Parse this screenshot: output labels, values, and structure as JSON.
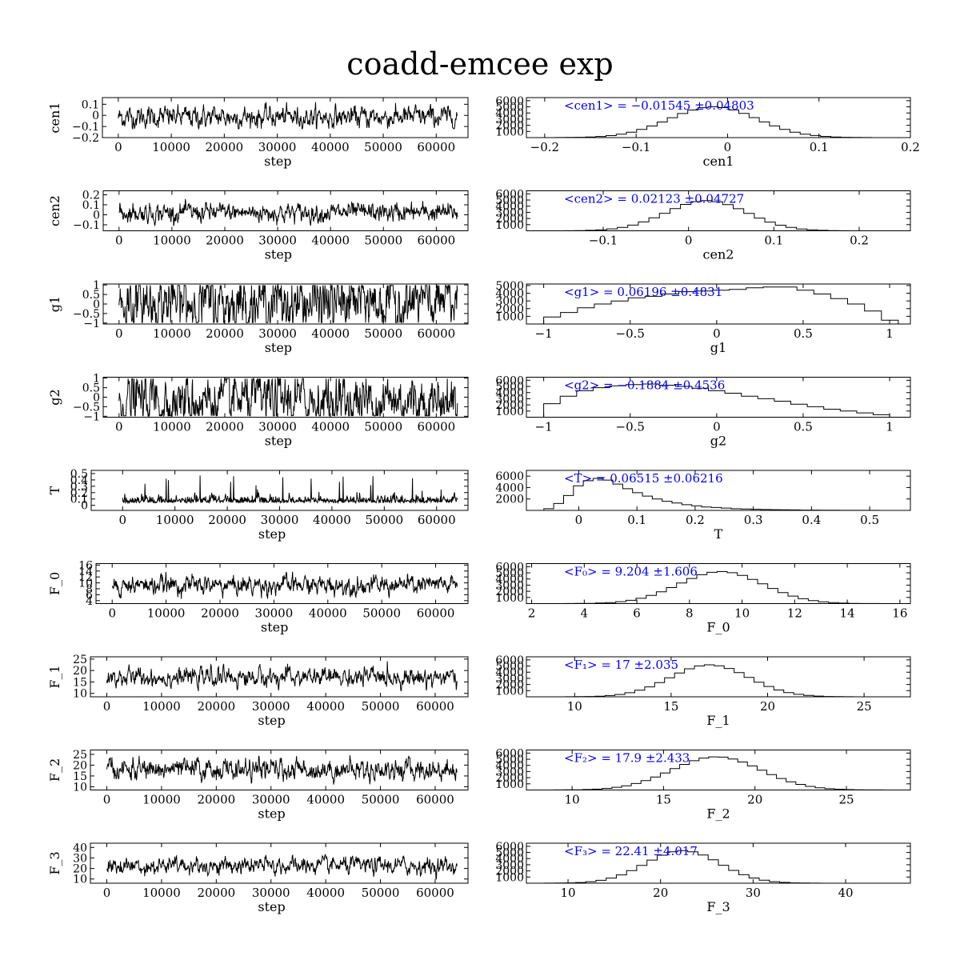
{
  "title": "coadd-emcee exp",
  "colors": {
    "trace": "#000000",
    "annotation": "#0000ff",
    "axes": "#000000"
  },
  "chart_data": [
    {
      "type": "line",
      "panel": "trace",
      "xlabel": "step",
      "ylabel": "cen1",
      "xlim": [
        -3000,
        66000
      ],
      "ylim": [
        -0.2,
        0.16
      ],
      "xticks": [
        0,
        10000,
        20000,
        30000,
        40000,
        50000,
        60000
      ],
      "yticks": [
        0.1,
        0,
        -0.1,
        -0.2
      ],
      "yticklabels": [
        "0.1",
        "0",
        "−0.1",
        "−0.2"
      ],
      "series": [
        {
          "n_steps": 64000,
          "mean": -0.01545,
          "std": 0.04803,
          "min": -0.12,
          "max": 0.12
        }
      ]
    },
    {
      "type": "bar",
      "panel": "hist",
      "xlabel": "cen1",
      "xlim": [
        -0.22,
        0.2
      ],
      "ylim": [
        0,
        6500
      ],
      "xticks": [
        -0.2,
        -0.1,
        0,
        0.1,
        0.2
      ],
      "xticklabels": [
        "−0.2",
        "−0.1",
        "0",
        "0.1",
        "0.2"
      ],
      "yticks": [
        1000,
        2000,
        3000,
        4000,
        5000,
        6000
      ],
      "annotation": "<cen1> = −0.01545 ±0.04803",
      "hist": {
        "mean": -0.01545,
        "std": 0.04803,
        "peak": 5000,
        "range": [
          -0.2,
          0.18
        ]
      }
    },
    {
      "type": "line",
      "panel": "trace",
      "xlabel": "step",
      "ylabel": "cen2",
      "xlim": [
        -3000,
        66000
      ],
      "ylim": [
        -0.16,
        0.24
      ],
      "xticks": [
        0,
        10000,
        20000,
        30000,
        40000,
        50000,
        60000
      ],
      "yticks": [
        0.2,
        0.1,
        0,
        -0.1
      ],
      "yticklabels": [
        "0.2",
        "0.1",
        "0",
        "−0.1"
      ],
      "series": [
        {
          "n_steps": 64000,
          "mean": 0.02123,
          "std": 0.04727,
          "min": -0.11,
          "max": 0.21
        }
      ]
    },
    {
      "type": "bar",
      "panel": "hist",
      "xlabel": "cen2",
      "xlim": [
        -0.19,
        0.26
      ],
      "ylim": [
        0,
        6500
      ],
      "xticks": [
        -0.1,
        0,
        0.1,
        0.2
      ],
      "xticklabels": [
        "−0.1",
        "0",
        "0.1",
        "0.2"
      ],
      "yticks": [
        1000,
        2000,
        3000,
        4000,
        5000,
        6000
      ],
      "annotation": "<cen2> = 0.02123 ±0.04727",
      "hist": {
        "mean": 0.02123,
        "std": 0.04727,
        "peak": 4900,
        "range": [
          -0.17,
          0.25
        ]
      }
    },
    {
      "type": "line",
      "panel": "trace",
      "xlabel": "step",
      "ylabel": "g1",
      "xlim": [
        -3000,
        66000
      ],
      "ylim": [
        -1.05,
        1.05
      ],
      "xticks": [
        0,
        10000,
        20000,
        30000,
        40000,
        50000,
        60000
      ],
      "yticks": [
        1,
        0.5,
        0,
        -0.5,
        -1
      ],
      "yticklabels": [
        "1",
        "0.5",
        "0",
        "−0.5",
        "−1"
      ],
      "series": [
        {
          "n_steps": 64000,
          "mean": 0.06196,
          "std": 0.4831,
          "min": -0.98,
          "max": 0.98
        }
      ]
    },
    {
      "type": "bar",
      "panel": "hist",
      "xlabel": "g1",
      "xlim": [
        -1.1,
        1.12
      ],
      "ylim": [
        0,
        5200
      ],
      "xticks": [
        -1,
        -0.5,
        0,
        0.5,
        1
      ],
      "xticklabels": [
        "−1",
        "−0.5",
        "0",
        "0.5",
        "1"
      ],
      "yticks": [
        1000,
        2000,
        3000,
        4000,
        5000
      ],
      "annotation": "<g1> = 0.06196 ±0.4831",
      "hist": {
        "values": [
          900,
          1500,
          2100,
          2600,
          3000,
          3400,
          3600,
          3900,
          4200,
          4300,
          4400,
          4500,
          4700,
          4800,
          4800,
          4400,
          3900,
          3300,
          2600,
          1700,
          500
        ],
        "range": [
          -1,
          1.05
        ]
      }
    },
    {
      "type": "line",
      "panel": "trace",
      "xlabel": "step",
      "ylabel": "g2",
      "xlim": [
        -3000,
        66000
      ],
      "ylim": [
        -1.05,
        1.05
      ],
      "xticks": [
        0,
        10000,
        20000,
        30000,
        40000,
        50000,
        60000
      ],
      "yticks": [
        1,
        0.5,
        0,
        -0.5,
        -1
      ],
      "yticklabels": [
        "1",
        "0.5",
        "0",
        "−0.5",
        "−1"
      ],
      "series": [
        {
          "n_steps": 64000,
          "mean": -0.1884,
          "std": 0.4536,
          "min": -0.98,
          "max": 0.98
        }
      ]
    },
    {
      "type": "bar",
      "panel": "hist",
      "xlabel": "g2",
      "xlim": [
        -1.1,
        1.12
      ],
      "ylim": [
        0,
        6500
      ],
      "xticks": [
        -1,
        -0.5,
        0,
        0.5,
        1
      ],
      "xticklabels": [
        "−1",
        "−0.5",
        "0",
        "0.5",
        "1"
      ],
      "yticks": [
        1000,
        2000,
        3000,
        4000,
        5000,
        6000
      ],
      "annotation": "<g2> = −0.1884 ±0.4536",
      "hist": {
        "values": [
          2200,
          3400,
          4300,
          4800,
          5100,
          5300,
          5400,
          5200,
          5000,
          4700,
          4300,
          3900,
          3400,
          3000,
          2600,
          2100,
          1700,
          1300,
          1000,
          700,
          400
        ],
        "range": [
          -1,
          1
        ]
      }
    },
    {
      "type": "line",
      "panel": "trace",
      "xlabel": "step",
      "ylabel": "T",
      "xlim": [
        -6000,
        66000
      ],
      "ylim": [
        -0.08,
        0.55
      ],
      "xticks": [
        0,
        10000,
        20000,
        30000,
        40000,
        50000,
        60000
      ],
      "yticks": [
        0.5,
        0.4,
        0.3,
        0.2,
        0.1,
        0
      ],
      "yticklabels": [
        "0.5",
        "0.4",
        "0.3",
        "0.2",
        "0.1",
        "0"
      ],
      "series": [
        {
          "n_steps": 64000,
          "mean": 0.06515,
          "std": 0.06216,
          "min": -0.03,
          "max": 0.5
        }
      ]
    },
    {
      "type": "bar",
      "panel": "hist",
      "xlabel": "T",
      "xlim": [
        -0.09,
        0.57
      ],
      "ylim": [
        0,
        7000
      ],
      "xticks": [
        0,
        0.1,
        0.2,
        0.3,
        0.4,
        0.5
      ],
      "xticklabels": [
        "0",
        "0.1",
        "0.2",
        "0.3",
        "0.4",
        "0.5"
      ],
      "yticks": [
        2000,
        4000,
        6000
      ],
      "annotation": "<T> = 0.06515 ±0.06216",
      "hist": {
        "values": [
          300,
          1200,
          2600,
          4300,
          5200,
          5600,
          5300,
          4600,
          3800,
          3100,
          2500,
          2000,
          1600,
          1300,
          1000,
          800,
          600,
          500,
          400,
          300,
          250,
          200,
          150,
          120,
          100,
          80,
          60,
          50,
          40,
          30,
          20,
          15,
          10,
          8,
          5,
          3
        ],
        "range": [
          -0.06,
          0.55
        ]
      }
    },
    {
      "type": "line",
      "panel": "trace",
      "xlabel": "step",
      "ylabel": "F_0",
      "xlim": [
        -3000,
        66000
      ],
      "ylim": [
        3,
        16.5
      ],
      "xticks": [
        0,
        10000,
        20000,
        30000,
        40000,
        50000,
        60000
      ],
      "yticks": [
        16,
        14,
        12,
        10,
        8,
        6,
        4
      ],
      "yticklabels": [
        "16",
        "14",
        "12",
        "10",
        "8",
        "6",
        "4"
      ],
      "series": [
        {
          "n_steps": 64000,
          "mean": 9.204,
          "std": 1.606,
          "min": 4,
          "max": 15
        }
      ]
    },
    {
      "type": "bar",
      "panel": "hist",
      "xlabel": "F_0",
      "xlim": [
        1.8,
        16.4
      ],
      "ylim": [
        0,
        6500
      ],
      "xticks": [
        2,
        4,
        6,
        8,
        10,
        12,
        14,
        16
      ],
      "yticks": [
        1000,
        2000,
        3000,
        4000,
        5000,
        6000
      ],
      "annotation": "<F₀> = 9.204 ±1.606",
      "hist": {
        "mean": 9.204,
        "std": 1.606,
        "peak": 5200,
        "range": [
          2.5,
          15.6
        ]
      }
    },
    {
      "type": "line",
      "panel": "trace",
      "xlabel": "step",
      "ylabel": "F_1",
      "xlim": [
        -3000,
        66000
      ],
      "ylim": [
        8.5,
        26
      ],
      "xticks": [
        0,
        10000,
        20000,
        30000,
        40000,
        50000,
        60000
      ],
      "yticks": [
        25,
        20,
        15,
        10
      ],
      "yticklabels": [
        "25",
        "20",
        "15",
        "10"
      ],
      "series": [
        {
          "n_steps": 64000,
          "mean": 17,
          "std": 2.035,
          "min": 11,
          "max": 24
        }
      ]
    },
    {
      "type": "bar",
      "panel": "hist",
      "xlabel": "F_1",
      "xlim": [
        7.5,
        27.4
      ],
      "ylim": [
        0,
        6500
      ],
      "xticks": [
        10,
        15,
        20,
        25
      ],
      "yticks": [
        1000,
        2000,
        3000,
        4000,
        5000,
        6000
      ],
      "annotation": "<F₁> = 17 ±2.035",
      "hist": {
        "mean": 17,
        "std": 2.035,
        "peak": 5200,
        "range": [
          9,
          26.5
        ]
      }
    },
    {
      "type": "line",
      "panel": "trace",
      "xlabel": "step",
      "ylabel": "F_2",
      "xlim": [
        -3000,
        66000
      ],
      "ylim": [
        8.5,
        27
      ],
      "xticks": [
        0,
        10000,
        20000,
        30000,
        40000,
        50000,
        60000
      ],
      "yticks": [
        25,
        20,
        15,
        10
      ],
      "yticklabels": [
        "25",
        "20",
        "15",
        "10"
      ],
      "series": [
        {
          "n_steps": 64000,
          "mean": 17.9,
          "std": 2.433,
          "min": 11,
          "max": 26
        }
      ]
    },
    {
      "type": "bar",
      "panel": "hist",
      "xlabel": "F_2",
      "xlim": [
        7.5,
        28.5
      ],
      "ylim": [
        0,
        6500
      ],
      "xticks": [
        10,
        15,
        20,
        25
      ],
      "yticks": [
        1000,
        2000,
        3000,
        4000,
        5000,
        6000
      ],
      "annotation": "<F₂> = 17.9 ±2.433",
      "hist": {
        "mean": 17.9,
        "std": 2.433,
        "peak": 5400,
        "range": [
          9,
          27
        ]
      }
    },
    {
      "type": "line",
      "panel": "trace",
      "xlabel": "step",
      "ylabel": "F_3",
      "xlim": [
        -3000,
        66000
      ],
      "ylim": [
        6,
        44
      ],
      "xticks": [
        0,
        10000,
        20000,
        30000,
        40000,
        50000,
        60000
      ],
      "yticks": [
        40,
        30,
        20,
        10
      ],
      "yticklabels": [
        "40",
        "30",
        "20",
        "10"
      ],
      "series": [
        {
          "n_steps": 64000,
          "mean": 22.41,
          "std": 4.017,
          "min": 10,
          "max": 40
        }
      ]
    },
    {
      "type": "bar",
      "panel": "hist",
      "xlabel": "F_3",
      "xlim": [
        5.5,
        47
      ],
      "ylim": [
        0,
        6500
      ],
      "xticks": [
        10,
        20,
        30,
        40
      ],
      "yticks": [
        1000,
        2000,
        3000,
        4000,
        5000,
        6000
      ],
      "annotation": "<F₃> = 22.41 ±4.017",
      "hist": {
        "mean": 22.41,
        "std": 4.017,
        "peak": 5300,
        "range": [
          7.5,
          45
        ]
      }
    }
  ]
}
